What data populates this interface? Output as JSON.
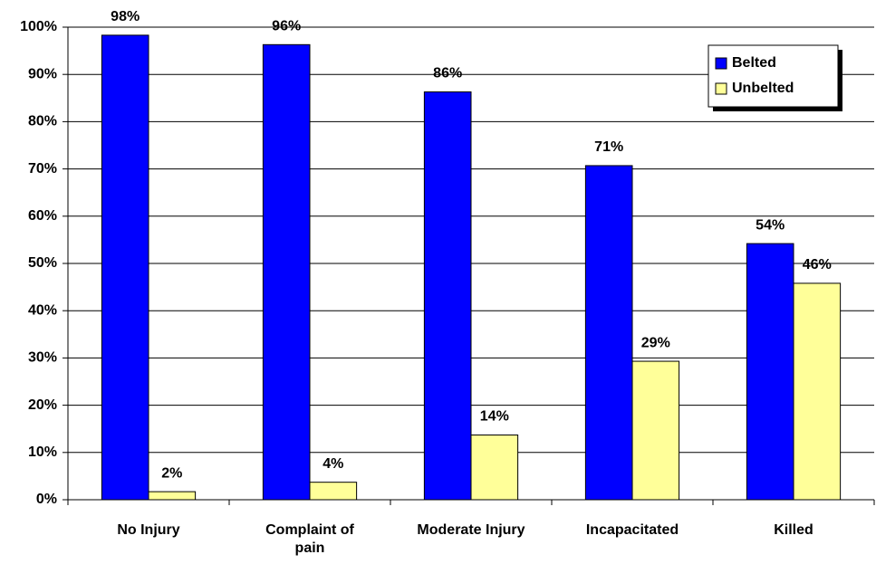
{
  "chart_data": {
    "type": "bar",
    "categories": [
      "No Injury",
      "Complaint of pain",
      "Moderate Injury",
      "Incapacitated",
      "Killed"
    ],
    "series": [
      {
        "name": "Belted",
        "color": "#0000ff",
        "values": [
          98.3,
          96.3,
          86.3,
          70.7,
          54.2
        ],
        "value_labels": [
          "98%",
          "96%",
          "86%",
          "71%",
          "54%"
        ]
      },
      {
        "name": "Unbelted",
        "color": "#ffff99",
        "values": [
          1.7,
          3.7,
          13.7,
          29.3,
          45.8
        ],
        "value_labels": [
          "2%",
          "4%",
          "14%",
          "29%",
          "46%"
        ]
      }
    ],
    "ylim": [
      0,
      100
    ],
    "yticks": [
      {
        "value": 0,
        "label": "0%"
      },
      {
        "value": 10,
        "label": "10%"
      },
      {
        "value": 20,
        "label": "20%"
      },
      {
        "value": 30,
        "label": "30%"
      },
      {
        "value": 40,
        "label": "40%"
      },
      {
        "value": 50,
        "label": "50%"
      },
      {
        "value": 60,
        "label": "60%"
      },
      {
        "value": 70,
        "label": "70%"
      },
      {
        "value": 80,
        "label": "80%"
      },
      {
        "value": 90,
        "label": "90%"
      },
      {
        "value": 100,
        "label": "100%"
      }
    ],
    "grid": true,
    "legend": "upper right"
  }
}
